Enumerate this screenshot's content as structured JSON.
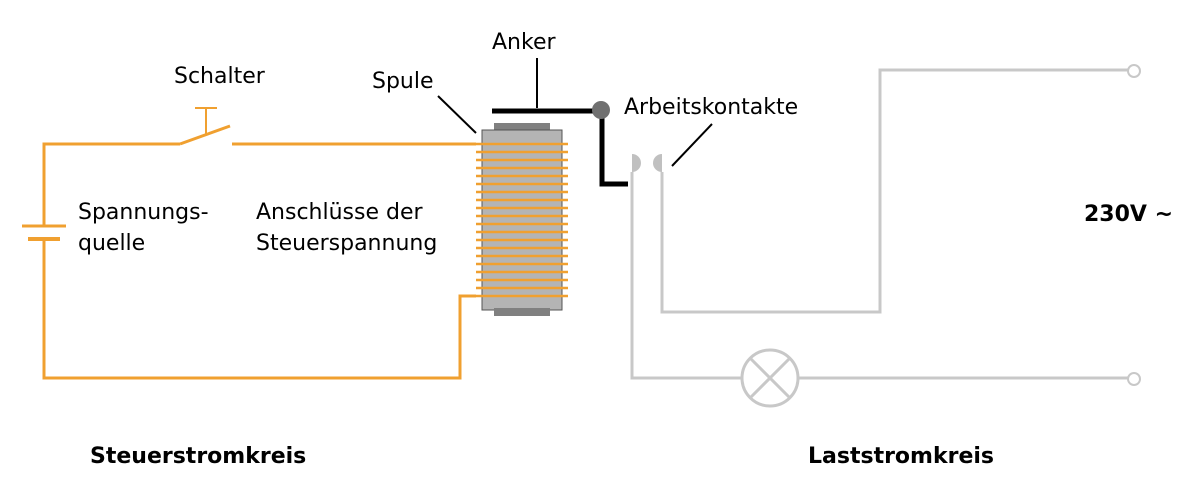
{
  "labels": {
    "switch": "Schalter",
    "armature": "Anker",
    "coil": "Spule",
    "contacts": "Arbeitskontakte",
    "source_line1": "Spannungs-",
    "source_line2": "quelle",
    "terminals_line1": "Anschlüsse der",
    "terminals_line2": "Steuerspannung",
    "voltage": "230V ~",
    "control_circuit": "Steuerstromkreis",
    "load_circuit": "Laststromkreis"
  },
  "colors": {
    "control_wire": "#f0a030",
    "load_wire": "#c8c8c8",
    "armature": "#000000",
    "coil_core": "#b4b4b4",
    "coil_cap": "#808080",
    "pivot": "#707070",
    "lamp": "#c8c8c8"
  }
}
